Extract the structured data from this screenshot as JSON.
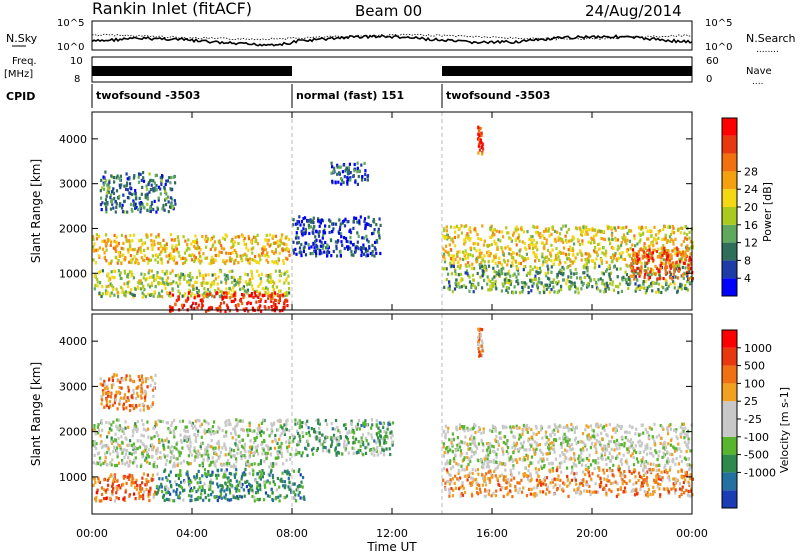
{
  "header": {
    "station": "Rankin Inlet (fitACF)",
    "beam": "Beam 00",
    "date": "24/Aug/2014"
  },
  "status_panel": {
    "nsky_label": "N.Sky",
    "nsearch_label": "N.Search",
    "nsearch_legend": "........",
    "nsky_ticks": [
      "10^5",
      "10^0"
    ],
    "nsearch_ticks": [
      "10^5",
      "10^0"
    ],
    "freq_label_top": "Freq.",
    "freq_label_bottom": "[MHz]",
    "freq_ticks": [
      "10",
      "8"
    ],
    "nave_label": "Nave",
    "nave_legend": "....",
    "nave_ticks": [
      "60",
      "0"
    ],
    "cpid_label": "CPID",
    "modes": [
      {
        "name": "twofsound",
        "id": "-3503",
        "start_hour": 0,
        "end_hour": 8
      },
      {
        "name": "normal (fast)",
        "id": "151",
        "start_hour": 8,
        "end_hour": 14
      },
      {
        "name": "twofsound",
        "id": "-3503",
        "start_hour": 14,
        "end_hour": 24
      }
    ]
  },
  "x_axis": {
    "label": "Time UT",
    "ticks": [
      "00:00",
      "04:00",
      "08:00",
      "12:00",
      "16:00",
      "20:00",
      "00:00"
    ],
    "range_hours": [
      0,
      24
    ]
  },
  "chart_data": [
    {
      "type": "heatmap",
      "parameter": "Power",
      "ylabel": "Slant Range [km]",
      "yticks": [
        "1000",
        "2000",
        "3000",
        "4000"
      ],
      "ylim": [
        180,
        4600
      ],
      "colorbar": {
        "label": "Power [dB]",
        "ticks": [
          "4",
          "8",
          "12",
          "16",
          "20",
          "24",
          "28"
        ],
        "colors": [
          "#0000ff",
          "#1e3ca8",
          "#2f6e5a",
          "#5fa85e",
          "#aaca20",
          "#f3d813",
          "#f4a011",
          "#f2700e",
          "#e8380d",
          "#ff0000"
        ]
      },
      "regions": [
        {
          "t0": 0.0,
          "t1": 7.9,
          "r0": 1250,
          "r1": 1900,
          "level": 0.6
        },
        {
          "t0": 0.0,
          "t1": 7.9,
          "r0": 500,
          "r1": 1100,
          "level": 0.45
        },
        {
          "t0": 3.0,
          "t1": 7.8,
          "r0": 180,
          "r1": 600,
          "level": 0.92
        },
        {
          "t0": 0.3,
          "t1": 3.3,
          "r0": 2400,
          "r1": 3300,
          "level": 0.25
        },
        {
          "t0": 8.0,
          "t1": 11.5,
          "r0": 1400,
          "r1": 2300,
          "level": 0.15
        },
        {
          "t0": 9.5,
          "t1": 11.0,
          "r0": 3000,
          "r1": 3500,
          "level": 0.18
        },
        {
          "t0": 14.0,
          "t1": 24.0,
          "r0": 1200,
          "r1": 2100,
          "level": 0.55
        },
        {
          "t0": 14.0,
          "t1": 24.0,
          "r0": 600,
          "r1": 1200,
          "level": 0.35
        },
        {
          "t0": 21.5,
          "t1": 24.0,
          "r0": 900,
          "r1": 1600,
          "level": 0.82
        },
        {
          "t0": 15.4,
          "t1": 15.6,
          "r0": 3700,
          "r1": 4300,
          "level": 0.85
        }
      ]
    },
    {
      "type": "heatmap",
      "parameter": "Velocity",
      "ylabel": "Slant Range [km]",
      "yticks": [
        "1000",
        "2000",
        "3000",
        "4000"
      ],
      "ylim": [
        180,
        4600
      ],
      "colorbar": {
        "label": "Velocity [m s-1]",
        "ticks": [
          "1000",
          "500",
          "100",
          "25",
          "-25",
          "-100",
          "-500",
          "-1000"
        ],
        "colors": [
          "#1a3cb4",
          "#2470a0",
          "#2e8a4c",
          "#57b52e",
          "#c8c8c8",
          "#c8c8c8",
          "#f2a020",
          "#f07014",
          "#e8380d",
          "#ff0000"
        ]
      },
      "regions": [
        {
          "t0": 0.0,
          "t1": 7.9,
          "r0": 1250,
          "r1": 2300,
          "level": 0.45
        },
        {
          "t0": 0.0,
          "t1": 2.5,
          "r0": 500,
          "r1": 1100,
          "level": 0.75
        },
        {
          "t0": 2.5,
          "t1": 8.5,
          "r0": 500,
          "r1": 1200,
          "level": 0.25
        },
        {
          "t0": 0.3,
          "t1": 2.5,
          "r0": 2500,
          "r1": 3300,
          "level": 0.7
        },
        {
          "t0": 8.0,
          "t1": 12.0,
          "r0": 1500,
          "r1": 2300,
          "level": 0.35
        },
        {
          "t0": 14.0,
          "t1": 24.0,
          "r0": 1200,
          "r1": 2200,
          "level": 0.48
        },
        {
          "t0": 14.0,
          "t1": 24.0,
          "r0": 600,
          "r1": 1200,
          "level": 0.68
        },
        {
          "t0": 15.4,
          "t1": 15.6,
          "r0": 3700,
          "r1": 4300,
          "level": 0.7
        }
      ]
    }
  ]
}
